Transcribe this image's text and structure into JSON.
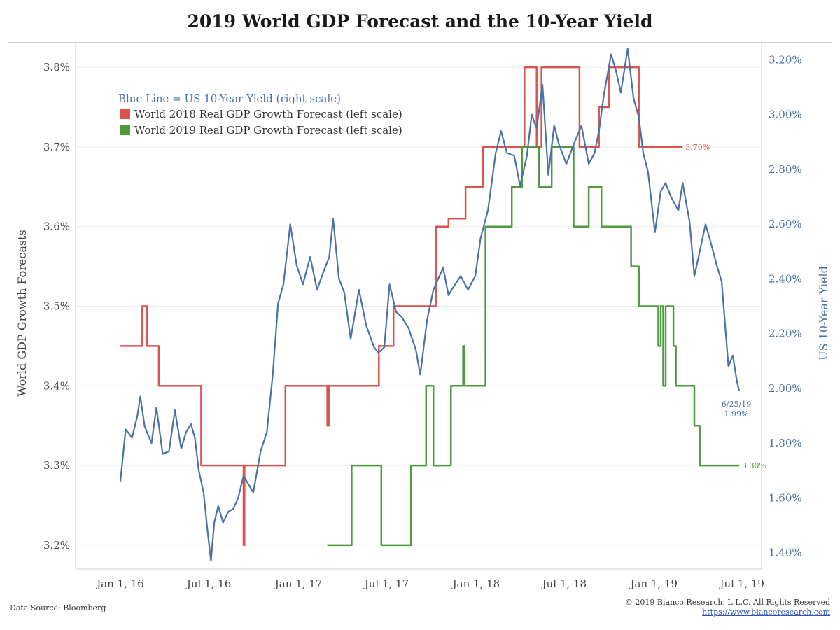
{
  "title": "2019 World GDP Forecast and the 10-Year Yield",
  "footer": {
    "source": "Data Source: Bloomberg",
    "copyright": "© 2019 Bianco Research, L.L.C. All Rights Reserved",
    "url": "https://www.biancoresearch.com"
  },
  "colors": {
    "red": "#d9534f",
    "green": "#4e9a3f",
    "blue": "#4a72a8"
  },
  "chart_data": {
    "type": "line",
    "title": "2019 World GDP Forecast and the 10-Year Yield",
    "ylabel_left": "World GDP Growth Forecasts",
    "ylabel_right": "US 10-Year Yield",
    "xlim": [
      "2015-10-01",
      "2019-08-10"
    ],
    "x_ticks": [
      {
        "date": "2016-01-01",
        "label": "Jan 1, 16"
      },
      {
        "date": "2016-07-01",
        "label": "Jul 1, 16"
      },
      {
        "date": "2017-01-01",
        "label": "Jan 1, 17"
      },
      {
        "date": "2017-07-01",
        "label": "Jul 1, 17"
      },
      {
        "date": "2018-01-01",
        "label": "Jan 1, 18"
      },
      {
        "date": "2018-07-01",
        "label": "Jul 1, 18"
      },
      {
        "date": "2019-01-01",
        "label": "Jan 1, 19"
      },
      {
        "date": "2019-07-01",
        "label": "Jul 1, 19"
      }
    ],
    "ylim_left": [
      3.17,
      3.83
    ],
    "y_ticks_left": [
      {
        "value": 3.2,
        "label": "3.2%"
      },
      {
        "value": 3.3,
        "label": "3.3%"
      },
      {
        "value": 3.4,
        "label": "3.4%"
      },
      {
        "value": 3.5,
        "label": "3.5%"
      },
      {
        "value": 3.6,
        "label": "3.6%"
      },
      {
        "value": 3.7,
        "label": "3.7%"
      },
      {
        "value": 3.8,
        "label": "3.8%"
      }
    ],
    "ylim_right": [
      1.34,
      3.26
    ],
    "y_ticks_right": [
      {
        "value": 1.4,
        "label": "1.40%"
      },
      {
        "value": 1.6,
        "label": "1.60%"
      },
      {
        "value": 1.8,
        "label": "1.80%"
      },
      {
        "value": 2.0,
        "label": "2.00%"
      },
      {
        "value": 2.2,
        "label": "2.20%"
      },
      {
        "value": 2.4,
        "label": "2.40%"
      },
      {
        "value": 2.6,
        "label": "2.60%"
      },
      {
        "value": 2.8,
        "label": "2.80%"
      },
      {
        "value": 3.0,
        "label": "3.00%"
      },
      {
        "value": 3.2,
        "label": "3.20%"
      }
    ],
    "grid": true,
    "legend": {
      "position": "top-left",
      "note": "Blue Line = US 10-Year Yield (right scale)",
      "entries": [
        {
          "label": "World 2018 Real GDP Growth Forecast (left scale)",
          "color": "#d9534f"
        },
        {
          "label": "World 2019 Real GDP Growth Forecast (left scale)",
          "color": "#4e9a3f"
        }
      ]
    },
    "series": [
      {
        "key": "gdp2018",
        "name": "World 2018 Real GDP Growth Forecast (left scale)",
        "axis": "left",
        "color": "#d9534f",
        "step": true,
        "points": [
          [
            "2016-01-01",
            3.45
          ],
          [
            "2016-02-15",
            3.5
          ],
          [
            "2016-02-25",
            3.45
          ],
          [
            "2016-03-20",
            3.4
          ],
          [
            "2016-06-15",
            3.3
          ],
          [
            "2016-09-10",
            3.2
          ],
          [
            "2016-09-12",
            3.3
          ],
          [
            "2016-12-05",
            3.4
          ],
          [
            "2017-03-01",
            3.35
          ],
          [
            "2017-03-04",
            3.4
          ],
          [
            "2017-06-15",
            3.45
          ],
          [
            "2017-07-15",
            3.5
          ],
          [
            "2017-10-10",
            3.6
          ],
          [
            "2017-11-05",
            3.61
          ],
          [
            "2017-12-10",
            3.65
          ],
          [
            "2018-01-15",
            3.7
          ],
          [
            "2018-04-10",
            3.8
          ],
          [
            "2018-05-05",
            3.7
          ],
          [
            "2018-05-15",
            3.8
          ],
          [
            "2018-08-01",
            3.7
          ],
          [
            "2018-09-10",
            3.75
          ],
          [
            "2018-10-01",
            3.8
          ],
          [
            "2018-12-01",
            3.7
          ],
          [
            "2019-03-01",
            3.7
          ]
        ],
        "end_label": "3.70%"
      },
      {
        "key": "gdp2019",
        "name": "World 2019 Real GDP Growth Forecast (left scale)",
        "axis": "left",
        "color": "#4e9a3f",
        "step": true,
        "points": [
          [
            "2017-03-01",
            3.2
          ],
          [
            "2017-04-20",
            3.3
          ],
          [
            "2017-06-20",
            3.2
          ],
          [
            "2017-08-20",
            3.3
          ],
          [
            "2017-09-20",
            3.4
          ],
          [
            "2017-10-05",
            3.3
          ],
          [
            "2017-11-10",
            3.4
          ],
          [
            "2017-12-05",
            3.45
          ],
          [
            "2017-12-08",
            3.4
          ],
          [
            "2018-01-20",
            3.6
          ],
          [
            "2018-03-15",
            3.65
          ],
          [
            "2018-04-05",
            3.7
          ],
          [
            "2018-05-10",
            3.65
          ],
          [
            "2018-06-05",
            3.7
          ],
          [
            "2018-07-20",
            3.6
          ],
          [
            "2018-08-20",
            3.65
          ],
          [
            "2018-09-15",
            3.6
          ],
          [
            "2018-11-15",
            3.55
          ],
          [
            "2018-12-01",
            3.5
          ],
          [
            "2019-01-10",
            3.45
          ],
          [
            "2019-01-15",
            3.5
          ],
          [
            "2019-01-20",
            3.4
          ],
          [
            "2019-01-25",
            3.5
          ],
          [
            "2019-02-10",
            3.45
          ],
          [
            "2019-02-15",
            3.4
          ],
          [
            "2019-03-25",
            3.35
          ],
          [
            "2019-04-05",
            3.3
          ],
          [
            "2019-06-25",
            3.3
          ]
        ],
        "end_label": "3.30%"
      },
      {
        "key": "yield10",
        "name": "US 10-Year Yield",
        "axis": "right",
        "color": "#4a72a8",
        "step": false,
        "points": [
          [
            "2016-01-01",
            1.66
          ],
          [
            "2016-01-12",
            1.85
          ],
          [
            "2016-01-25",
            1.82
          ],
          [
            "2016-02-05",
            1.9
          ],
          [
            "2016-02-11",
            1.97
          ],
          [
            "2016-02-20",
            1.86
          ],
          [
            "2016-03-05",
            1.8
          ],
          [
            "2016-03-15",
            1.93
          ],
          [
            "2016-03-28",
            1.76
          ],
          [
            "2016-04-10",
            1.77
          ],
          [
            "2016-04-22",
            1.92
          ],
          [
            "2016-05-05",
            1.78
          ],
          [
            "2016-05-15",
            1.84
          ],
          [
            "2016-05-25",
            1.87
          ],
          [
            "2016-06-02",
            1.82
          ],
          [
            "2016-06-10",
            1.7
          ],
          [
            "2016-06-20",
            1.62
          ],
          [
            "2016-06-28",
            1.48
          ],
          [
            "2016-07-05",
            1.37
          ],
          [
            "2016-07-12",
            1.51
          ],
          [
            "2016-07-20",
            1.57
          ],
          [
            "2016-07-30",
            1.51
          ],
          [
            "2016-08-10",
            1.55
          ],
          [
            "2016-08-20",
            1.56
          ],
          [
            "2016-08-30",
            1.6
          ],
          [
            "2016-09-10",
            1.68
          ],
          [
            "2016-09-20",
            1.65
          ],
          [
            "2016-09-30",
            1.62
          ],
          [
            "2016-10-15",
            1.77
          ],
          [
            "2016-10-28",
            1.84
          ],
          [
            "2016-11-09",
            2.05
          ],
          [
            "2016-11-20",
            2.31
          ],
          [
            "2016-12-01",
            2.38
          ],
          [
            "2016-12-15",
            2.6
          ],
          [
            "2016-12-28",
            2.45
          ],
          [
            "2017-01-10",
            2.38
          ],
          [
            "2017-01-25",
            2.48
          ],
          [
            "2017-02-08",
            2.36
          ],
          [
            "2017-02-20",
            2.42
          ],
          [
            "2017-03-05",
            2.48
          ],
          [
            "2017-03-13",
            2.62
          ],
          [
            "2017-03-25",
            2.4
          ],
          [
            "2017-04-05",
            2.35
          ],
          [
            "2017-04-18",
            2.18
          ],
          [
            "2017-05-05",
            2.36
          ],
          [
            "2017-05-20",
            2.23
          ],
          [
            "2017-06-05",
            2.15
          ],
          [
            "2017-06-14",
            2.13
          ],
          [
            "2017-06-26",
            2.15
          ],
          [
            "2017-07-07",
            2.38
          ],
          [
            "2017-07-20",
            2.28
          ],
          [
            "2017-08-01",
            2.26
          ],
          [
            "2017-08-15",
            2.22
          ],
          [
            "2017-08-30",
            2.14
          ],
          [
            "2017-09-08",
            2.05
          ],
          [
            "2017-09-22",
            2.25
          ],
          [
            "2017-10-05",
            2.36
          ],
          [
            "2017-10-25",
            2.44
          ],
          [
            "2017-11-05",
            2.34
          ],
          [
            "2017-11-15",
            2.37
          ],
          [
            "2017-11-30",
            2.41
          ],
          [
            "2017-12-15",
            2.36
          ],
          [
            "2017-12-30",
            2.41
          ],
          [
            "2018-01-10",
            2.55
          ],
          [
            "2018-01-25",
            2.65
          ],
          [
            "2018-02-10",
            2.86
          ],
          [
            "2018-02-21",
            2.94
          ],
          [
            "2018-03-05",
            2.86
          ],
          [
            "2018-03-20",
            2.85
          ],
          [
            "2018-04-01",
            2.74
          ],
          [
            "2018-04-15",
            2.85
          ],
          [
            "2018-04-25",
            3.0
          ],
          [
            "2018-05-05",
            2.95
          ],
          [
            "2018-05-17",
            3.11
          ],
          [
            "2018-05-29",
            2.78
          ],
          [
            "2018-06-10",
            2.96
          ],
          [
            "2018-06-20",
            2.89
          ],
          [
            "2018-07-05",
            2.82
          ],
          [
            "2018-07-20",
            2.89
          ],
          [
            "2018-08-05",
            2.96
          ],
          [
            "2018-08-20",
            2.82
          ],
          [
            "2018-09-01",
            2.86
          ],
          [
            "2018-09-10",
            2.94
          ],
          [
            "2018-09-20",
            3.07
          ],
          [
            "2018-10-05",
            3.22
          ],
          [
            "2018-10-15",
            3.16
          ],
          [
            "2018-10-25",
            3.08
          ],
          [
            "2018-11-08",
            3.24
          ],
          [
            "2018-11-20",
            3.06
          ],
          [
            "2018-12-01",
            2.99
          ],
          [
            "2018-12-10",
            2.86
          ],
          [
            "2018-12-20",
            2.79
          ],
          [
            "2019-01-03",
            2.57
          ],
          [
            "2019-01-15",
            2.72
          ],
          [
            "2019-01-25",
            2.75
          ],
          [
            "2019-02-05",
            2.7
          ],
          [
            "2019-02-20",
            2.65
          ],
          [
            "2019-03-01",
            2.75
          ],
          [
            "2019-03-15",
            2.61
          ],
          [
            "2019-03-25",
            2.41
          ],
          [
            "2019-04-05",
            2.5
          ],
          [
            "2019-04-17",
            2.6
          ],
          [
            "2019-04-28",
            2.53
          ],
          [
            "2019-05-10",
            2.45
          ],
          [
            "2019-05-20",
            2.39
          ],
          [
            "2019-06-03",
            2.08
          ],
          [
            "2019-06-12",
            2.12
          ],
          [
            "2019-06-20",
            2.03
          ],
          [
            "2019-06-25",
            1.99
          ]
        ],
        "end_label_date": "6/25/19",
        "end_label_value": "1.99%"
      }
    ]
  }
}
